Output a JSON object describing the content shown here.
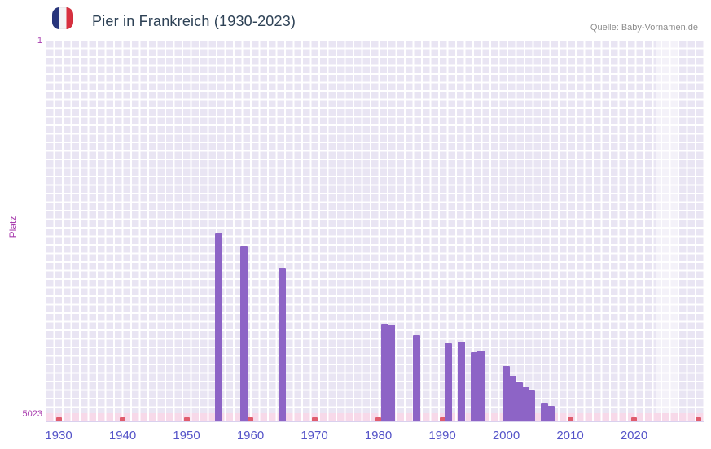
{
  "header": {
    "title": "Pier in Frankreich (1930-2023)",
    "source": "Quelle: Baby-Vornamen.de",
    "flag_icon": "france-flag"
  },
  "colors": {
    "bar": "#8d64c6",
    "unranked_marker": "#e05c6d",
    "grid_background": "#e9e5f3",
    "unranked_strip": "#f7d9e9",
    "year_labels": "#5453c8",
    "rank_labels": "#a83cae",
    "title": "#2e4256",
    "source": "#8c8c8c"
  },
  "chart_data": {
    "type": "bar",
    "title": "Pier in Frankreich (1930-2023)",
    "xlabel": "",
    "ylabel": "Platz",
    "grid": true,
    "y_axis": {
      "min": 1,
      "max": 5023,
      "inverted": true,
      "top_label": "1",
      "bottom_label": "5023"
    },
    "x_range": [
      1928,
      2032
    ],
    "x_ticks": [
      1930,
      1940,
      1950,
      1960,
      1970,
      1980,
      1990,
      2000,
      2010,
      2020
    ],
    "bars": [
      {
        "year": 1955,
        "rank": 2590
      },
      {
        "year": 1959,
        "rank": 2760
      },
      {
        "year": 1965,
        "rank": 3060
      },
      {
        "year": 1981,
        "rank": 3800
      },
      {
        "year": 1982,
        "rank": 3810
      },
      {
        "year": 1986,
        "rank": 3950
      },
      {
        "year": 1991,
        "rank": 4060
      },
      {
        "year": 1993,
        "rank": 4040
      },
      {
        "year": 1995,
        "rank": 4180
      },
      {
        "year": 1996,
        "rank": 4160
      },
      {
        "year": 2000,
        "rank": 4370
      },
      {
        "year": 2001,
        "rank": 4500
      },
      {
        "year": 2002,
        "rank": 4590
      },
      {
        "year": 2003,
        "rank": 4650
      },
      {
        "year": 2004,
        "rank": 4700
      },
      {
        "year": 2006,
        "rank": 4870
      },
      {
        "year": 2007,
        "rank": 4900
      }
    ],
    "unranked_years": [
      1930,
      1940,
      1950,
      1960,
      1970,
      1980,
      1990,
      2000,
      2010,
      2020,
      2030
    ]
  }
}
